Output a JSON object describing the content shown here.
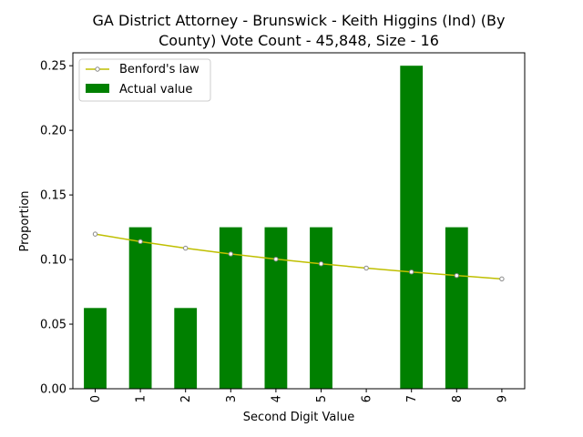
{
  "chart_data": {
    "type": "bar",
    "title_lines": [
      "GA District Attorney - Brunswick - Keith Higgins (Ind) (By",
      "County) Vote Count - 45,848, Size - 16"
    ],
    "xlabel": "Second Digit Value",
    "ylabel": "Proportion",
    "categories": [
      "0",
      "1",
      "2",
      "3",
      "4",
      "5",
      "6",
      "7",
      "8",
      "9"
    ],
    "ylim": [
      0,
      0.26
    ],
    "yticks": [
      "0.00",
      "0.05",
      "0.10",
      "0.15",
      "0.20",
      "0.25"
    ],
    "series": [
      {
        "name": "Actual value",
        "kind": "bar",
        "color": "#008000",
        "values": [
          0.0625,
          0.125,
          0.0625,
          0.125,
          0.125,
          0.125,
          0,
          0.25,
          0.125,
          0
        ]
      },
      {
        "name": "Benford's law",
        "kind": "line",
        "color": "#bfbf00",
        "values": [
          0.1197,
          0.1139,
          0.1088,
          0.1043,
          0.1003,
          0.0967,
          0.0934,
          0.0904,
          0.0876,
          0.085
        ]
      }
    ],
    "legend_position": "top-left",
    "grid": false
  }
}
